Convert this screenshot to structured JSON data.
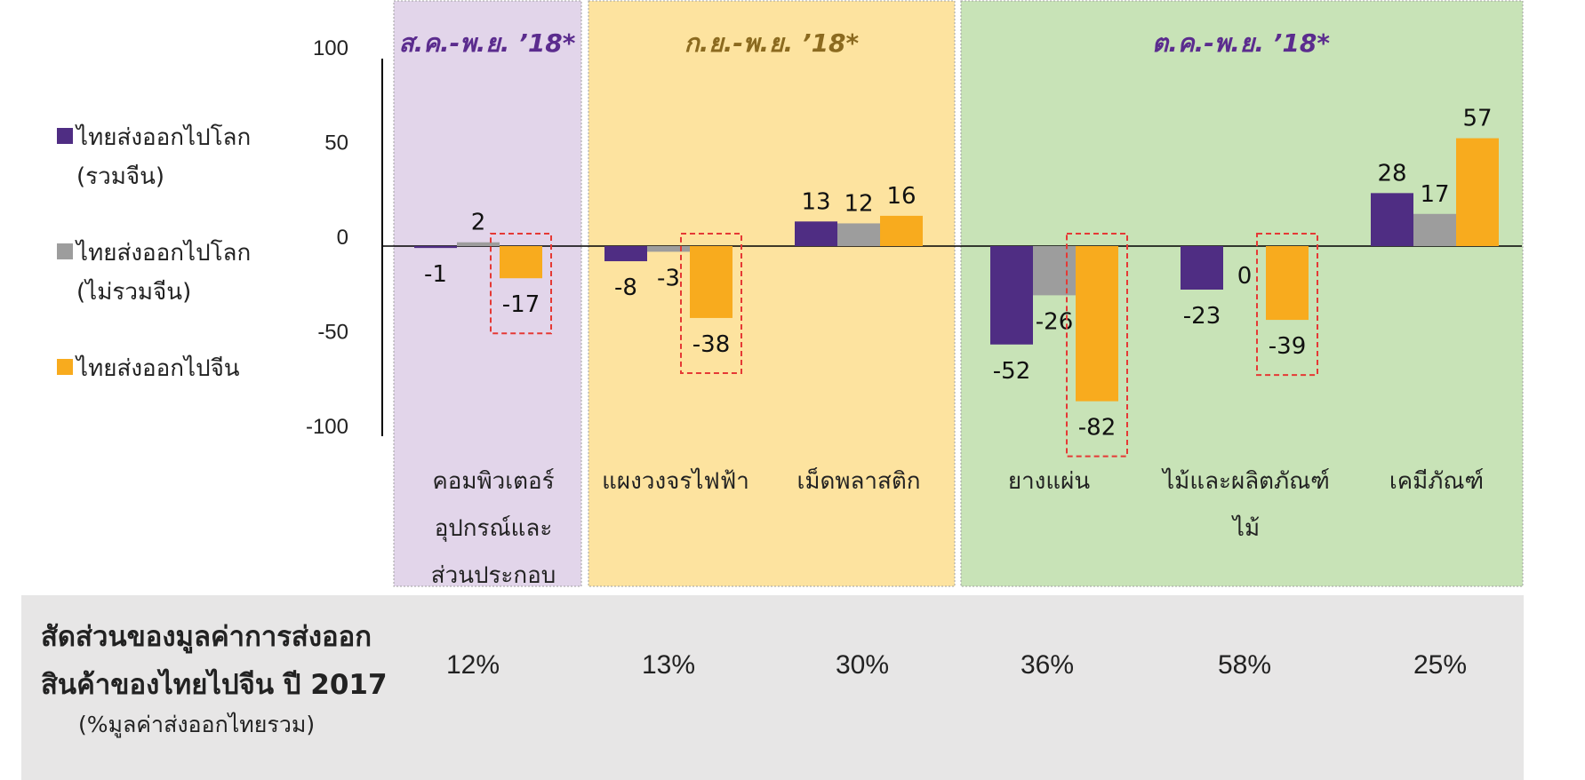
{
  "legend": [
    {
      "label": "ไทยส่งออกไปโลก\n(รวมจีน)",
      "color": "#4f2d83"
    },
    {
      "label": "ไทยส่งออกไปโลก\n(ไม่รวมจีน)",
      "color": "#9d9d9d"
    },
    {
      "label": "ไทยส่งออกไปจีน",
      "color": "#f8ab1e"
    }
  ],
  "colors": {
    "purple_band": "#e2d5ea",
    "yellow_band": "#fde39f",
    "green_band": "#c8e3b7",
    "purple_title": "#5b2c8e",
    "yellow_title": "#8b6a1f",
    "highlight_box": "#e53935",
    "panel": "#e7e6e6"
  },
  "chart_data": {
    "type": "bar",
    "ylim": [
      -100,
      100
    ],
    "yticks": [
      100,
      50,
      0,
      -50,
      -100
    ],
    "bands": [
      {
        "title": "ส.ค.-พ.ย. ’18*",
        "color": "purple",
        "categories": [
          0
        ]
      },
      {
        "title": "ก.ย.-พ.ย. ’18*",
        "color": "yellow",
        "categories": [
          1,
          2
        ]
      },
      {
        "title": "ต.ค.-พ.ย. ’18*",
        "color": "green",
        "categories": [
          3,
          4,
          5
        ]
      }
    ],
    "categories": [
      "คอมพิวเตอร์\nอุปกรณ์และ\nส่วนประกอบ",
      "แผงวงจรไฟฟ้า",
      "เม็ดพลาสติก",
      "ยางแผ่น",
      "ไม้และผลิตภัณฑ์\nไม้",
      "เคมีภัณฑ์"
    ],
    "series": [
      {
        "name": "ไทยส่งออกไปโลก (รวมจีน)",
        "color": "#4f2d83",
        "values": [
          -1,
          -8,
          13,
          -52,
          -23,
          28
        ],
        "labels": [
          "-1",
          "-8",
          "13",
          "-52",
          "-23",
          "28"
        ]
      },
      {
        "name": "ไทยส่งออกไปโลก (ไม่รวมจีน)",
        "color": "#9d9d9d",
        "values": [
          2,
          -3,
          12,
          -26,
          0,
          17
        ],
        "labels": [
          "2",
          "-3",
          "12",
          "-26",
          "0",
          "17"
        ]
      },
      {
        "name": "ไทยส่งออกไปจีน",
        "color": "#f8ab1e",
        "values": [
          -17,
          -38,
          16,
          -82,
          -39,
          57
        ],
        "labels": [
          "-17",
          "-38",
          "16",
          "-82",
          "-39",
          "57"
        ]
      }
    ],
    "highlighted": [
      0,
      1,
      3,
      4
    ]
  },
  "share_panel": {
    "title": "สัดส่วนของมูลค่าการส่งออก\nสินค้าของไทยไปจีน ปี 2017",
    "subtitle": "(%มูลค่าส่งออกไทยรวม)",
    "values": [
      "12%",
      "13%",
      "30%",
      "36%",
      "58%",
      "25%"
    ]
  }
}
